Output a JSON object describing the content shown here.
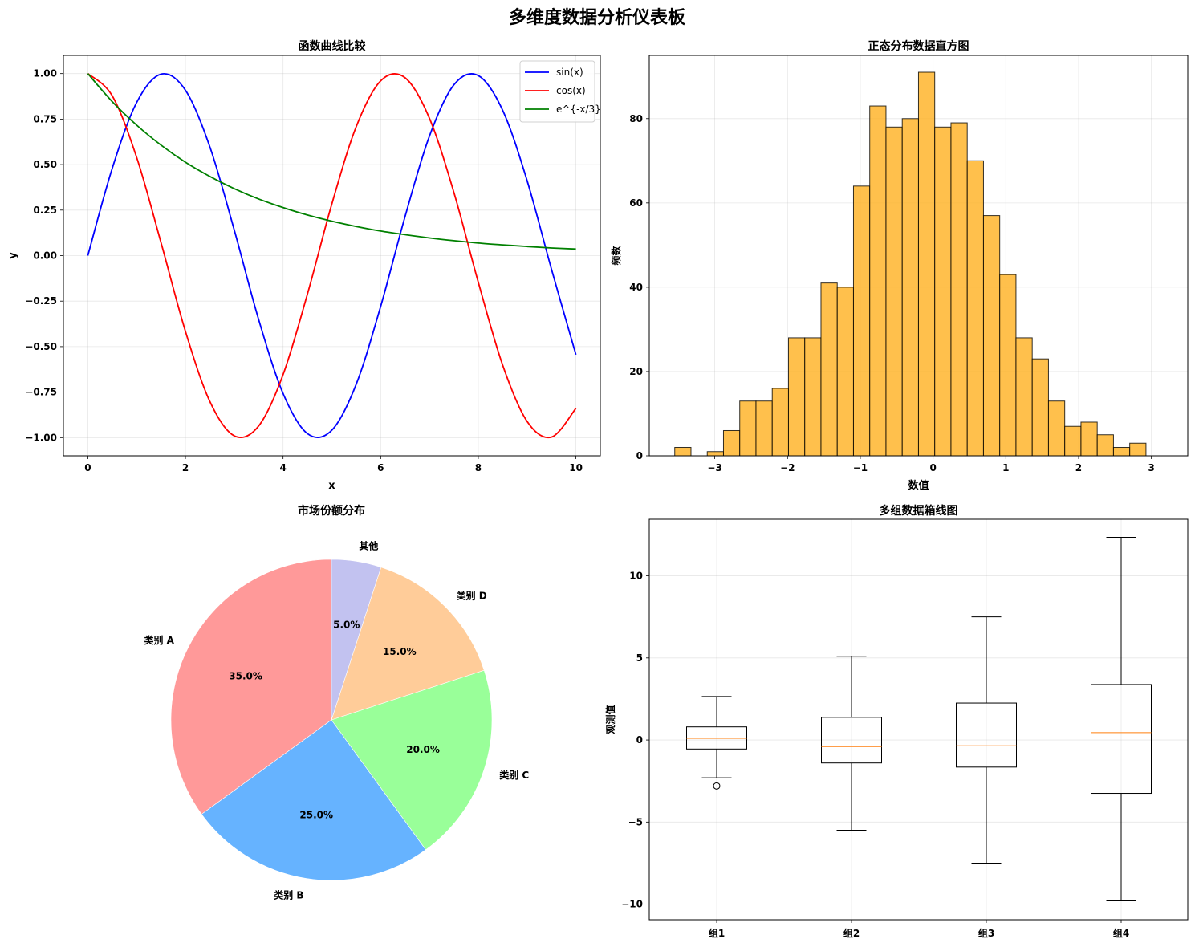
{
  "suptitle": "多维度数据分析仪表板",
  "chart_data": [
    {
      "type": "line",
      "title": "函数曲线比较",
      "xlabel": "x",
      "ylabel": "y",
      "xlim": [
        -0.5,
        10.5
      ],
      "ylim": [
        -1.1,
        1.1
      ],
      "xticks": [
        0,
        2,
        4,
        6,
        8,
        10
      ],
      "xtick_labels": [
        "0",
        "2",
        "4",
        "6",
        "8",
        "10"
      ],
      "yticks": [
        1.0,
        0.75,
        0.5,
        0.25,
        0.0,
        -0.25,
        -0.5,
        -0.75,
        -1.0
      ],
      "ytick_labels": [
        "1.00",
        "0.75",
        "0.50",
        "0.25",
        "0.00",
        "−0.25",
        "−0.50",
        "−0.75",
        "−1.00"
      ],
      "grid": true,
      "legend_position": "top-right",
      "x": [
        0,
        0.5,
        1,
        1.5,
        2,
        2.5,
        3,
        3.5,
        4,
        4.5,
        5,
        5.5,
        6,
        6.5,
        7,
        7.5,
        8,
        8.5,
        9,
        9.5,
        10
      ],
      "series": [
        {
          "name": "sin(x)",
          "color": "#0000ff",
          "values": [
            0.0,
            0.479,
            0.841,
            0.997,
            0.909,
            0.598,
            0.141,
            -0.351,
            -0.757,
            -0.978,
            -0.959,
            -0.706,
            -0.279,
            0.215,
            0.657,
            0.938,
            0.989,
            0.798,
            0.412,
            -0.075,
            -0.544
          ]
        },
        {
          "name": "cos(x)",
          "color": "#ff0000",
          "values": [
            1.0,
            0.878,
            0.54,
            0.071,
            -0.416,
            -0.801,
            -0.99,
            -0.936,
            -0.654,
            -0.211,
            0.284,
            0.709,
            0.96,
            0.977,
            0.754,
            0.347,
            -0.146,
            -0.602,
            -0.911,
            -0.997,
            -0.839
          ]
        },
        {
          "name": "e^{-x/3}",
          "color": "#008000",
          "values": [
            1.0,
            0.846,
            0.717,
            0.607,
            0.513,
            0.435,
            0.368,
            0.311,
            0.264,
            0.223,
            0.189,
            0.16,
            0.135,
            0.115,
            0.097,
            0.082,
            0.069,
            0.059,
            0.05,
            0.042,
            0.036
          ]
        }
      ]
    },
    {
      "type": "bar",
      "title": "正态分布数据直方图",
      "xlabel": "数值",
      "ylabel": "频数",
      "xlim": [
        -3.9,
        3.5
      ],
      "ylim": [
        0,
        95
      ],
      "xticks": [
        -3,
        -2,
        -1,
        0,
        1,
        2,
        3
      ],
      "xtick_labels": [
        "−3",
        "−2",
        "−1",
        "0",
        "1",
        "2",
        "3"
      ],
      "yticks": [
        0,
        20,
        40,
        60,
        80
      ],
      "ytick_labels": [
        "0",
        "20",
        "40",
        "60",
        "80"
      ],
      "grid": true,
      "color": "#ffb01f",
      "bin_start": -3.55,
      "bin_width": 0.2233,
      "values": [
        2,
        0,
        1,
        6,
        13,
        13,
        16,
        28,
        28,
        41,
        40,
        64,
        83,
        78,
        80,
        91,
        78,
        79,
        70,
        57,
        43,
        28,
        23,
        13,
        7,
        8,
        5,
        2,
        3
      ]
    },
    {
      "type": "pie",
      "title": "市场份额分布",
      "slices": [
        {
          "label": "类别 A",
          "value": 35.0,
          "pct": "35.0%",
          "color": "#ff9999"
        },
        {
          "label": "类别 B",
          "value": 25.0,
          "pct": "25.0%",
          "color": "#66b3ff"
        },
        {
          "label": "类别 C",
          "value": 20.0,
          "pct": "20.0%",
          "color": "#99ff99"
        },
        {
          "label": "类别 D",
          "value": 15.0,
          "pct": "15.0%",
          "color": "#ffcc99"
        },
        {
          "label": "其他",
          "value": 5.0,
          "pct": "5.0%",
          "color": "#c2c2f0"
        }
      ]
    },
    {
      "type": "box",
      "title": "多组数据箱线图",
      "xlabel": "",
      "ylabel": "观测值",
      "ylim": [
        -10.95,
        13.45
      ],
      "yticks": [
        10,
        5,
        0,
        -5,
        -10
      ],
      "ytick_labels": [
        "10",
        "5",
        "0",
        "−5",
        "−10"
      ],
      "grid": true,
      "median_color": "#ff7f0e",
      "groups": [
        {
          "label": "组1",
          "whisker_low": -2.3,
          "q1": -0.55,
          "median": 0.1,
          "q3": 0.8,
          "whisker_high": 2.65,
          "outliers": [
            -2.8
          ]
        },
        {
          "label": "组2",
          "whisker_low": -5.5,
          "q1": -1.4,
          "median": -0.4,
          "q3": 1.38,
          "whisker_high": 5.1,
          "outliers": []
        },
        {
          "label": "组3",
          "whisker_low": -7.5,
          "q1": -1.65,
          "median": -0.35,
          "q3": 2.25,
          "whisker_high": 7.5,
          "outliers": []
        },
        {
          "label": "组4",
          "whisker_low": -9.8,
          "q1": -3.25,
          "median": 0.45,
          "q3": 3.38,
          "whisker_high": 12.35,
          "outliers": []
        }
      ]
    }
  ]
}
